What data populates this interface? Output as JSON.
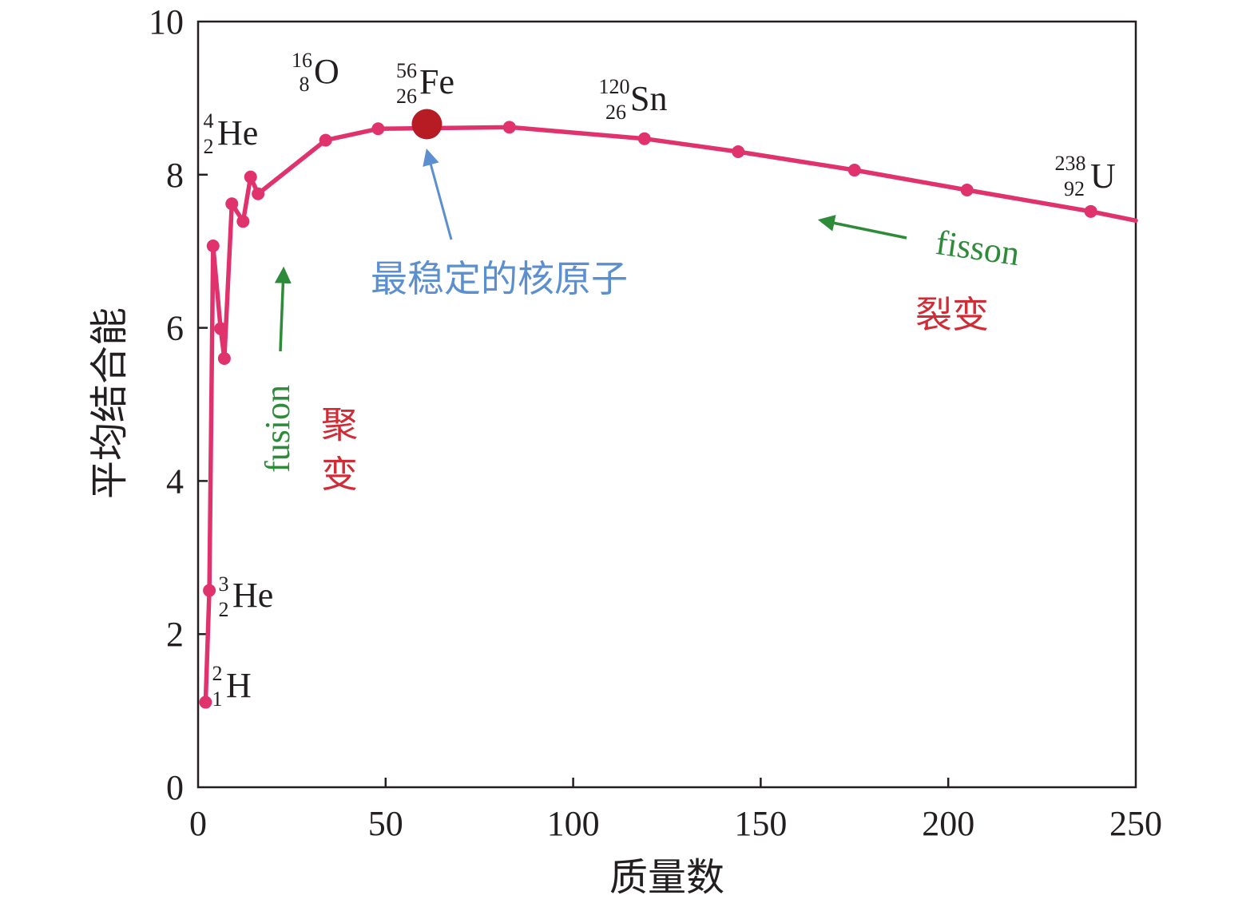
{
  "chart_data": {
    "type": "line",
    "xlabel": "质量数",
    "ylabel": "平均结合能",
    "xlim": [
      0,
      250
    ],
    "ylim": [
      0,
      10
    ],
    "x_ticks": [
      "0",
      "50",
      "100",
      "150",
      "200",
      "250"
    ],
    "y_ticks": [
      "0",
      "2",
      "4",
      "6",
      "8",
      "10"
    ],
    "grid": false,
    "series": [
      {
        "color": "#e0336e",
        "x": [
          2,
          3,
          4,
          6,
          7,
          9,
          12,
          14,
          16,
          34,
          48,
          83,
          119,
          144,
          175,
          205,
          238,
          250
        ],
        "y": [
          1.11,
          2.57,
          7.07,
          5.99,
          5.6,
          7.62,
          7.39,
          7.97,
          7.75,
          8.45,
          8.6,
          8.62,
          8.47,
          8.3,
          8.06,
          7.8,
          7.52,
          7.4
        ]
      }
    ],
    "highlight_point": {
      "x": 61,
      "y": 8.66,
      "color": "#b71c24"
    },
    "nuclide_labels": [
      {
        "sup": "2",
        "sub": "1",
        "symbol": "H"
      },
      {
        "sup": "3",
        "sub": "2",
        "symbol": "He"
      },
      {
        "sup": "4",
        "sub": "2",
        "symbol": "He"
      },
      {
        "sup": "16",
        "sub": "8",
        "symbol": "O"
      },
      {
        "sup": "56",
        "sub": "26",
        "symbol": "Fe"
      },
      {
        "sup": "120",
        "sub": "26",
        "symbol": "Sn"
      },
      {
        "sup": "238",
        "sub": "92",
        "symbol": "U"
      }
    ],
    "annotations": {
      "most_stable": {
        "text": "最稳定的核原子",
        "color": "#5b8fcf"
      },
      "fusion_en": {
        "text": "fusion",
        "color": "#2e8b3a"
      },
      "fusion_zh": {
        "text": "聚变",
        "color": "#d12b35"
      },
      "fission_en": {
        "text": "fisson",
        "color": "#2e8b3a"
      },
      "fission_zh": {
        "text": "裂变",
        "color": "#d12b35"
      }
    }
  }
}
